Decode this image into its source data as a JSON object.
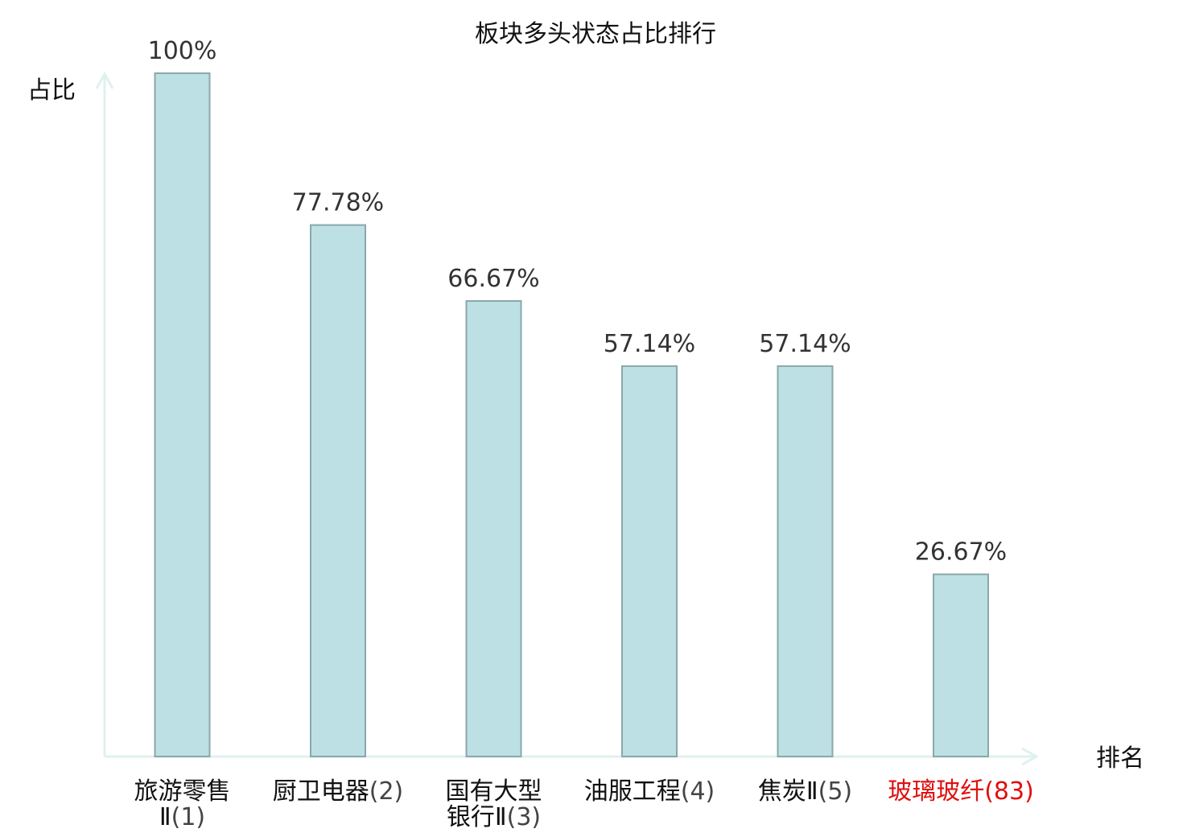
{
  "chart_data": {
    "type": "bar",
    "title": "板块多头状态占比排行",
    "xlabel": "排名",
    "ylabel": "占比",
    "ylim": [
      0,
      100
    ],
    "grid": false,
    "value_suffix": "%",
    "categories": [
      {
        "lines": [
          "旅游零售",
          "Ⅱ"
        ],
        "rank": "(1)",
        "highlight": false
      },
      {
        "lines": [
          "厨卫电器"
        ],
        "rank": "(2)",
        "highlight": false
      },
      {
        "lines": [
          "国有大型",
          "银行Ⅱ"
        ],
        "rank": "(3)",
        "highlight": false
      },
      {
        "lines": [
          "油服工程"
        ],
        "rank": "(4)",
        "highlight": false
      },
      {
        "lines": [
          "焦炭Ⅱ"
        ],
        "rank": "(5)",
        "highlight": false
      },
      {
        "lines": [
          "玻璃玻纤"
        ],
        "rank": "(83)",
        "highlight": true
      }
    ],
    "values": [
      100,
      77.78,
      66.67,
      57.14,
      57.14,
      26.67
    ],
    "value_labels": [
      "100%",
      "77.78%",
      "66.67%",
      "57.14%",
      "57.14%",
      "26.67%"
    ]
  },
  "colors": {
    "bar_fill": "#bce0e3",
    "bar_stroke": "#8aa8ab",
    "axis": "#dff1ef",
    "highlight": "#e01010"
  }
}
